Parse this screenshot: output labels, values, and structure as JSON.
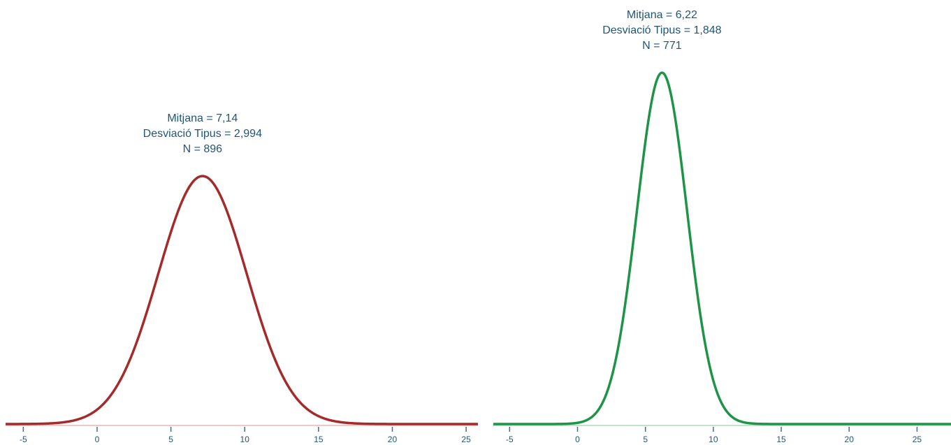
{
  "chart_data": [
    {
      "type": "line",
      "title": "",
      "xlabel": "",
      "ylabel": "",
      "xlim": [
        -6.2,
        25.8
      ],
      "x_ticks": [
        -5,
        0,
        5,
        10,
        15,
        20,
        25
      ],
      "tick_labels": [
        "-5",
        "0",
        "5",
        "10",
        "15",
        "20",
        "25"
      ],
      "annotation": {
        "mean_text": "Mitjana = 7,14",
        "sd_text": "Desviació Tipus = 2,994",
        "n_text": "N = 896"
      },
      "series": [
        {
          "curve": "normal",
          "mean": 7.14,
          "sd": 2.994,
          "n": 896,
          "color": "#a52a2a"
        }
      ],
      "axis_color": "#f0c8c8",
      "grid": false,
      "legend": "none"
    },
    {
      "type": "line",
      "title": "",
      "xlabel": "",
      "ylabel": "",
      "xlim": [
        -6.2,
        27.5
      ],
      "x_ticks": [
        -5,
        0,
        5,
        10,
        15,
        20,
        25
      ],
      "tick_labels": [
        "-5",
        "0",
        "5",
        "10",
        "15",
        "20",
        "25"
      ],
      "annotation": {
        "mean_text": "Mitjana = 6,22",
        "sd_text": "Desviació Tipus = 1,848",
        "n_text": "N = 771"
      },
      "series": [
        {
          "curve": "normal",
          "mean": 6.22,
          "sd": 1.848,
          "n": 771,
          "color": "#1e9446"
        }
      ],
      "axis_color": "#bfe4c9",
      "grid": false,
      "legend": "none"
    }
  ]
}
